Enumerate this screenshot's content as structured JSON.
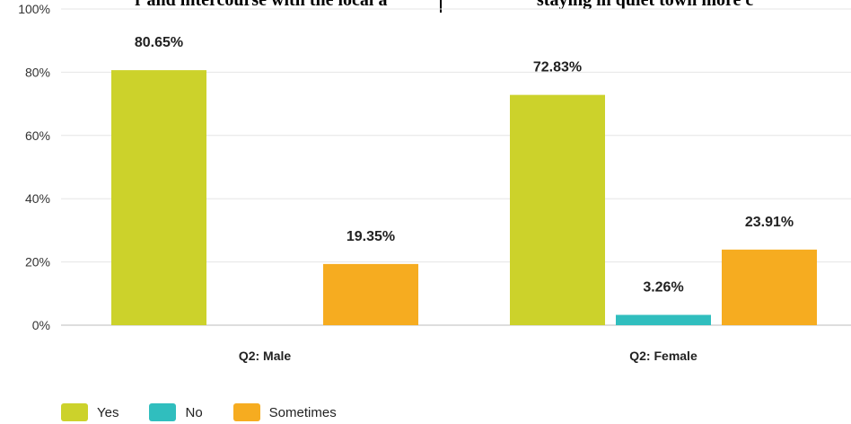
{
  "top_text": {
    "left": "r and intercourse with the local a",
    "right": "staying in quiet town more c"
  },
  "chart_data": {
    "type": "bar",
    "categories": [
      "Q2: Male",
      "Q2: Female"
    ],
    "series": [
      {
        "name": "Yes",
        "values": [
          80.65,
          72.83
        ],
        "labels": [
          "80.65%",
          "72.83%"
        ],
        "color": "#ccd22b"
      },
      {
        "name": "No",
        "values": [
          0,
          3.26
        ],
        "labels": [
          "",
          "3.26%"
        ],
        "color": "#30bebe"
      },
      {
        "name": "Sometimes",
        "values": [
          19.35,
          23.91
        ],
        "labels": [
          "19.35%",
          "23.91%"
        ],
        "color": "#f6ac20"
      }
    ],
    "ylim": [
      0,
      100
    ],
    "yticks": [
      0,
      20,
      40,
      60,
      80,
      100
    ],
    "ytick_labels": [
      "0%",
      "20%",
      "40%",
      "60%",
      "80%",
      "100%"
    ],
    "grid": true,
    "legend": "bottom-left"
  }
}
